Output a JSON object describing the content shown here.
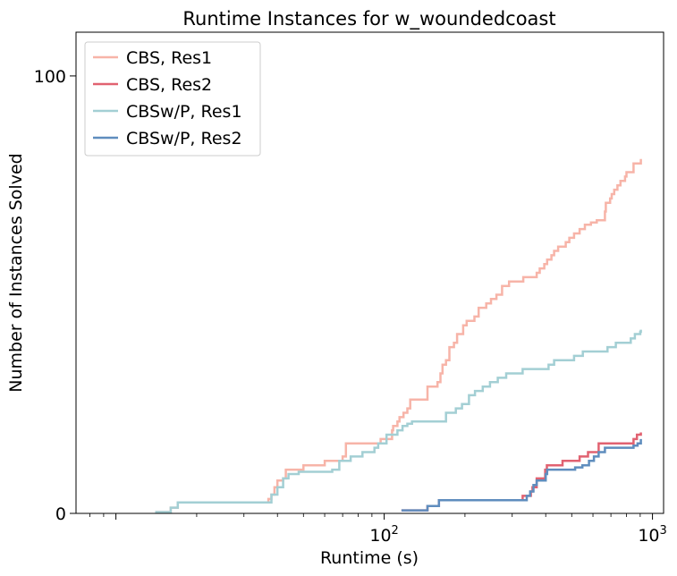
{
  "chart_data": {
    "type": "line",
    "title": "Runtime Instances for w_woundedcoast",
    "xlabel": "Runtime (s)",
    "ylabel": "Number of Instances Solved",
    "xscale": "log",
    "xlim": [
      7.1,
      1100
    ],
    "ylim": [
      0,
      110
    ],
    "xticks": [
      {
        "value": 100,
        "base": "10",
        "exp": "2"
      },
      {
        "value": 1000,
        "base": "10",
        "exp": "3"
      }
    ],
    "yticks": [
      {
        "value": 0,
        "label": "0"
      },
      {
        "value": 100,
        "label": "100"
      }
    ],
    "grid": false,
    "legend_position": "top-left",
    "series": [
      {
        "name": "CBS, Res1",
        "color": "#f7b4a8",
        "points": [
          [
            14,
            0.3
          ],
          [
            16,
            1.3
          ],
          [
            17,
            2.5
          ],
          [
            36,
            2.5
          ],
          [
            37,
            3.3
          ],
          [
            38,
            4.3
          ],
          [
            39,
            6
          ],
          [
            40,
            7.5
          ],
          [
            42,
            8
          ],
          [
            43,
            10
          ],
          [
            48,
            10
          ],
          [
            50,
            11
          ],
          [
            55,
            11
          ],
          [
            60,
            12
          ],
          [
            65,
            12
          ],
          [
            70,
            13
          ],
          [
            72,
            16
          ],
          [
            85,
            16
          ],
          [
            97,
            17
          ],
          [
            107,
            19
          ],
          [
            108,
            20
          ],
          [
            112,
            21
          ],
          [
            114,
            22
          ],
          [
            118,
            23
          ],
          [
            122,
            24
          ],
          [
            125,
            26
          ],
          [
            140,
            26
          ],
          [
            145,
            29
          ],
          [
            158,
            30
          ],
          [
            162,
            32
          ],
          [
            165,
            34
          ],
          [
            170,
            35
          ],
          [
            175,
            38
          ],
          [
            182,
            39
          ],
          [
            187,
            41
          ],
          [
            197,
            43
          ],
          [
            203,
            44
          ],
          [
            217,
            45
          ],
          [
            225,
            47
          ],
          [
            240,
            48
          ],
          [
            250,
            49
          ],
          [
            262,
            50
          ],
          [
            275,
            52
          ],
          [
            292,
            53
          ],
          [
            318,
            53
          ],
          [
            330,
            54
          ],
          [
            370,
            55
          ],
          [
            380,
            56
          ],
          [
            395,
            57
          ],
          [
            405,
            58
          ],
          [
            420,
            59
          ],
          [
            430,
            60
          ],
          [
            445,
            61
          ],
          [
            475,
            62
          ],
          [
            490,
            63
          ],
          [
            510,
            64
          ],
          [
            535,
            65
          ],
          [
            560,
            66
          ],
          [
            590,
            66.5
          ],
          [
            620,
            67
          ],
          [
            660,
            67
          ],
          [
            665,
            69
          ],
          [
            670,
            71
          ],
          [
            695,
            72
          ],
          [
            705,
            73
          ],
          [
            720,
            74
          ],
          [
            740,
            75
          ],
          [
            760,
            76
          ],
          [
            790,
            77
          ],
          [
            800,
            78
          ],
          [
            850,
            80
          ],
          [
            900,
            80
          ],
          [
            905,
            81
          ]
        ]
      },
      {
        "name": "CBS, Res2",
        "color": "#e16271",
        "points": [
          [
            116,
            0.7
          ],
          [
            145,
            1.7
          ],
          [
            160,
            3
          ],
          [
            315,
            3
          ],
          [
            328,
            4
          ],
          [
            352,
            5
          ],
          [
            357,
            6
          ],
          [
            370,
            8
          ],
          [
            382,
            8
          ],
          [
            398,
            10
          ],
          [
            404,
            11
          ],
          [
            462,
            12
          ],
          [
            535,
            13
          ],
          [
            562,
            13
          ],
          [
            575,
            14
          ],
          [
            630,
            16
          ],
          [
            700,
            16
          ],
          [
            850,
            17
          ],
          [
            875,
            18
          ],
          [
            905,
            18.5
          ]
        ]
      },
      {
        "name": "CBSw/P, Res1",
        "color": "#a3cfd4",
        "points": [
          [
            14,
            0.3
          ],
          [
            16,
            1.3
          ],
          [
            17,
            2.5
          ],
          [
            37,
            2.5
          ],
          [
            38,
            4.3
          ],
          [
            40,
            6
          ],
          [
            42,
            8
          ],
          [
            44,
            9
          ],
          [
            48,
            9.5
          ],
          [
            62,
            9.5
          ],
          [
            64,
            10
          ],
          [
            68,
            12
          ],
          [
            75,
            13
          ],
          [
            83,
            14
          ],
          [
            92,
            15
          ],
          [
            95,
            16
          ],
          [
            102,
            18
          ],
          [
            109,
            18
          ],
          [
            112,
            19
          ],
          [
            117,
            20
          ],
          [
            122,
            20.5
          ],
          [
            127,
            21
          ],
          [
            140,
            21
          ],
          [
            170,
            23
          ],
          [
            185,
            24
          ],
          [
            195,
            25
          ],
          [
            207,
            27
          ],
          [
            218,
            28
          ],
          [
            233,
            29
          ],
          [
            248,
            30
          ],
          [
            265,
            31
          ],
          [
            285,
            32
          ],
          [
            318,
            32
          ],
          [
            328,
            33
          ],
          [
            410,
            34
          ],
          [
            430,
            35
          ],
          [
            510,
            36
          ],
          [
            550,
            37
          ],
          [
            680,
            38
          ],
          [
            730,
            39
          ],
          [
            830,
            40
          ],
          [
            860,
            41
          ],
          [
            900,
            41.5
          ],
          [
            905,
            42
          ]
        ]
      },
      {
        "name": "CBSw/P, Res2",
        "color": "#5f8dbe",
        "points": [
          [
            116,
            0.7
          ],
          [
            145,
            1.7
          ],
          [
            160,
            3
          ],
          [
            332,
            3
          ],
          [
            340,
            4
          ],
          [
            350,
            5
          ],
          [
            360,
            6.5
          ],
          [
            370,
            7.5
          ],
          [
            383,
            7.5
          ],
          [
            400,
            9
          ],
          [
            405,
            10
          ],
          [
            515,
            10.5
          ],
          [
            548,
            11
          ],
          [
            580,
            12
          ],
          [
            605,
            13
          ],
          [
            630,
            14
          ],
          [
            665,
            15
          ],
          [
            700,
            15
          ],
          [
            850,
            15.5
          ],
          [
            880,
            16
          ],
          [
            905,
            17
          ]
        ]
      }
    ]
  }
}
